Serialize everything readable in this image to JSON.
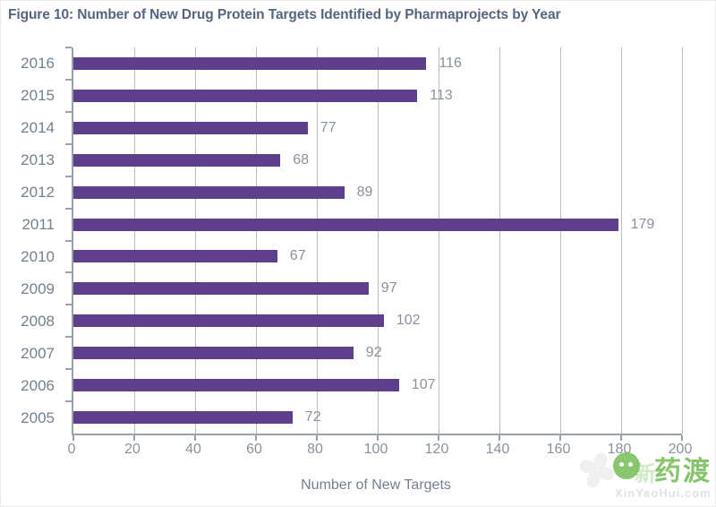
{
  "figure": {
    "title": "Figure 10: Number of New Drug Protein Targets Identified by Pharmaprojects by Year"
  },
  "chart_data": {
    "type": "bar",
    "orientation": "horizontal",
    "title": "Figure 10: Number of New Drug Protein Targets Identified by Pharmaprojects by Year",
    "categories": [
      "2016",
      "2015",
      "2014",
      "2013",
      "2012",
      "2011",
      "2010",
      "2009",
      "2008",
      "2007",
      "2006",
      "2005"
    ],
    "values": [
      116,
      113,
      77,
      68,
      89,
      179,
      67,
      97,
      102,
      92,
      107,
      72
    ],
    "xlabel": "Number of New Targets",
    "ylabel": "",
    "xlim": [
      0,
      200
    ],
    "xticks": [
      0,
      20,
      40,
      60,
      80,
      100,
      120,
      140,
      160,
      180,
      200
    ],
    "grid": true,
    "legend": "none",
    "data_labels": true
  },
  "colors": {
    "title": "#55657f",
    "bar": "#5d3f8b",
    "axis": "#9aa1a8",
    "grid": "#b9bcc0",
    "category_label": "#73808f",
    "value_label": "#8a919e",
    "watermark_green": "#7cc15f"
  },
  "watermark": {
    "faint_char": "新",
    "brand": "药渡",
    "site": "XinYaoHui.com"
  }
}
